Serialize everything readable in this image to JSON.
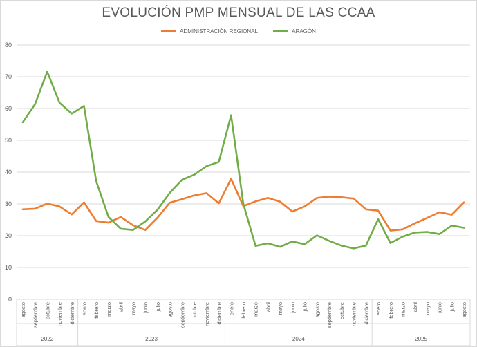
{
  "chart_data": {
    "type": "line",
    "title": "EVOLUCIÓN PMP MENSUAL DE LAS CCAA",
    "xlabel": "",
    "ylabel": "",
    "ylim": [
      0,
      80
    ],
    "yticks": [
      0,
      10,
      20,
      30,
      40,
      50,
      60,
      70,
      80
    ],
    "grid": true,
    "legend_position": "top",
    "categories": [
      "agosto",
      "septiembre",
      "octubre",
      "noviembre",
      "diciembre",
      "enero",
      "febrero",
      "marzo",
      "abril",
      "mayo",
      "junio",
      "julio",
      "agosto",
      "septiembre",
      "octubre",
      "noviembre",
      "diciembre",
      "enero",
      "febrero",
      "marzo",
      "abril",
      "mayo",
      "junio",
      "julio",
      "agosto",
      "septiembre",
      "octubre",
      "noviembre",
      "diciembre",
      "enero",
      "febrero",
      "marzo",
      "abril",
      "mayo",
      "junio",
      "julio",
      "agosto"
    ],
    "year_groups": [
      {
        "label": "2022",
        "count": 5
      },
      {
        "label": "2023",
        "count": 12
      },
      {
        "label": "2024",
        "count": 12
      },
      {
        "label": "2025",
        "count": 8
      }
    ],
    "series": [
      {
        "name": "ADMINISTRACIÓN REGIONAL",
        "color": "#ED7D31",
        "values": [
          28.3,
          28.5,
          30.1,
          29.2,
          26.7,
          30.5,
          24.6,
          24.1,
          25.9,
          23.3,
          21.8,
          25.7,
          30.4,
          31.5,
          32.7,
          33.4,
          30.2,
          37.9,
          29.3,
          30.8,
          31.9,
          30.7,
          27.6,
          29.2,
          31.9,
          32.3,
          32.1,
          31.7,
          28.3,
          27.9,
          21.6,
          22.0,
          23.9,
          25.6,
          27.4,
          26.6,
          30.5
        ]
      },
      {
        "name": "ARAGÓN",
        "color": "#70AD47",
        "values": [
          55.7,
          61.3,
          71.6,
          61.8,
          58.4,
          60.8,
          37.1,
          25.9,
          22.2,
          21.8,
          24.5,
          28.2,
          33.5,
          37.6,
          39.2,
          41.9,
          43.2,
          57.9,
          30.0,
          16.8,
          17.6,
          16.5,
          18.2,
          17.3,
          20.1,
          18.4,
          16.9,
          16.0,
          16.9,
          25.2,
          17.7,
          19.7,
          21.0,
          21.2,
          20.5,
          23.2,
          22.5
        ]
      }
    ]
  }
}
